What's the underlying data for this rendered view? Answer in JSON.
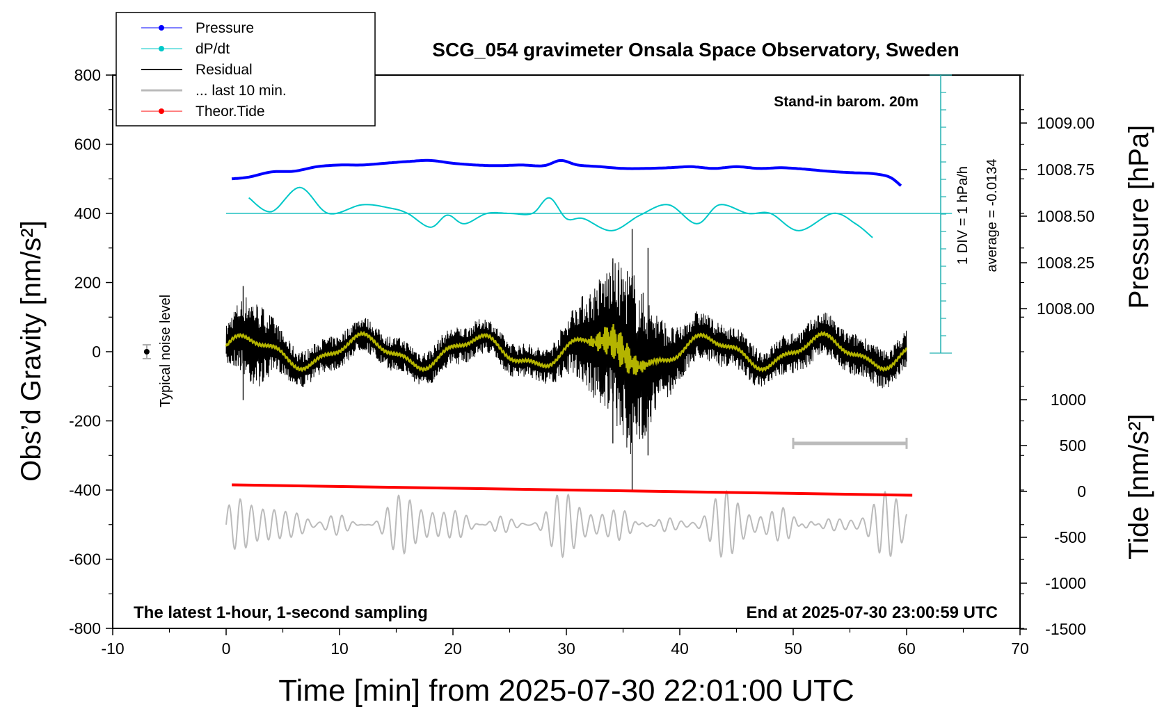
{
  "chart_data": {
    "type": "line",
    "title": "SCG_054 gravimeter Onsala Space Observatory, Sweden",
    "xlabel": "Time [min] from 2025-07-30 22:01:00 UTC",
    "ylabel_left": "Obs’d Gravity [nm/s²]",
    "ylabel_right_top": "Pressure [hPa]",
    "ylabel_right_bottom": "Tide [nm/s²]",
    "xlim": [
      -10,
      70
    ],
    "ylim": [
      -800,
      800
    ],
    "x_ticks": [
      -10,
      0,
      10,
      20,
      30,
      40,
      50,
      60,
      70
    ],
    "y_ticks": [
      -800,
      -600,
      -400,
      -200,
      0,
      200,
      400,
      600,
      800
    ],
    "pressure_ticks": [
      "1009.00",
      "1008.75",
      "1008.50",
      "1008.25",
      "1008.00"
    ],
    "tide_ticks": [
      "1000",
      "500",
      "0",
      "-500",
      "-1000",
      "-1500"
    ],
    "annotations": {
      "barometer": "Stand-in barom. 20m",
      "noise": "Typical noise level",
      "dpdt_scale": "1 DIV = 1 hPa/h",
      "dpdt_average": "average = -0.0134",
      "sampling": "The latest 1-hour, 1-second sampling",
      "end_time": "End at 2025-07-30 23:00:59 UTC"
    },
    "legend": {
      "placement": "top-left",
      "entries": [
        "Pressure",
        "dP/dt",
        "Residual",
        "... last 10 min.",
        "Theor.Tide"
      ]
    },
    "series": [
      {
        "name": "Pressure",
        "color": "#0000ff",
        "x": [
          0.5,
          2,
          4,
          6,
          8,
          10,
          12,
          14,
          16,
          18,
          20,
          22,
          24,
          26,
          28,
          29.5,
          31,
          33,
          35,
          37,
          39,
          41,
          43,
          45,
          47,
          49,
          51,
          53,
          55,
          57,
          58.5,
          59.5
        ],
        "y": [
          500,
          505,
          520,
          522,
          535,
          540,
          540,
          545,
          550,
          553,
          545,
          540,
          538,
          540,
          538,
          553,
          540,
          535,
          530,
          530,
          532,
          535,
          530,
          535,
          530,
          532,
          528,
          522,
          518,
          515,
          505,
          480
        ]
      },
      {
        "name": "dP/dt",
        "color": "#00c8c8",
        "x": [
          2,
          4,
          6.5,
          9,
          12,
          14.5,
          16,
          18,
          19.5,
          21,
          23,
          25,
          27,
          28.5,
          30,
          31.5,
          34,
          36.5,
          39,
          41.5,
          43.5,
          46,
          48,
          50.5,
          53.5,
          55.5,
          57
        ],
        "y": [
          445,
          405,
          475,
          400,
          425,
          415,
          400,
          360,
          395,
          370,
          400,
          400,
          400,
          445,
          385,
          385,
          350,
          395,
          425,
          370,
          425,
          400,
          400,
          350,
          400,
          370,
          330
        ]
      },
      {
        "name": "Residual",
        "color": "#000000",
        "x_start": 0,
        "x_end": 60
      },
      {
        "name": "... last 10 min.",
        "color": "#bbbbbb",
        "x_start": 0,
        "x_end": 60
      },
      {
        "name": "Theor.Tide",
        "color": "#ff0000",
        "x": [
          0.5,
          60.5
        ],
        "y": [
          -385,
          -415
        ]
      }
    ],
    "noise_marker": {
      "x": -7,
      "y": 0,
      "err": 20
    }
  }
}
